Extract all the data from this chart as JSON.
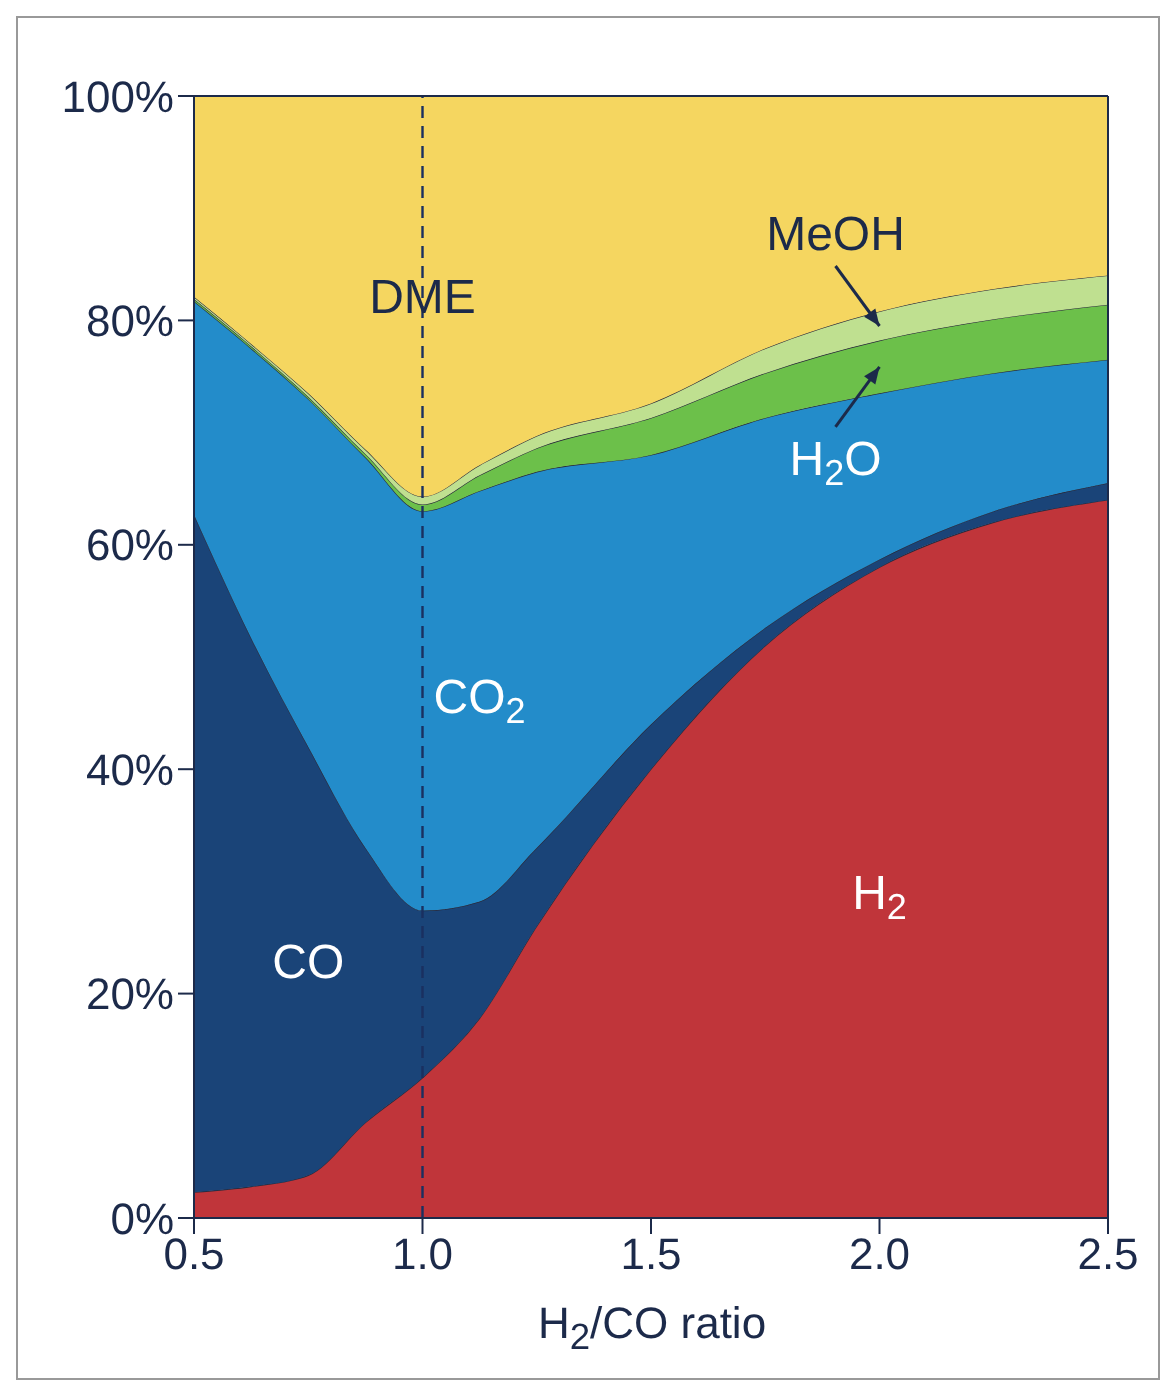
{
  "chart_data": {
    "type": "area",
    "stacked": true,
    "xlabel": "H$_{2}$/CO ratio",
    "x": [
      0.5,
      0.625,
      0.75,
      0.875,
      1.0,
      1.125,
      1.25,
      1.5,
      1.75,
      2.0,
      2.25,
      2.5
    ],
    "series": [
      {
        "name": "H$_{2}$",
        "color": "#c0353a",
        "values": [
          2.3,
          2.8,
          3.8,
          8.5,
          12.5,
          17.8,
          26,
          40,
          51,
          58,
          62,
          64
        ]
      },
      {
        "name": "CO",
        "color": "#1a4478",
        "values": [
          60.4,
          48.9,
          38.2,
          24.5,
          14.9,
          10.4,
          7,
          4,
          1.6,
          0.7,
          1,
          1.5
        ]
      },
      {
        "name": "CO$_{2}$",
        "color": "#238cca",
        "values": [
          19,
          25.8,
          31,
          34.8,
          35.6,
          36.6,
          33.5,
          24,
          18.7,
          14.8,
          12.3,
          11
        ]
      },
      {
        "name": "H$_{2}$O",
        "color": "#6cc04a",
        "values": [
          0.2,
          0.2,
          0.2,
          0.3,
          0.6,
          1.4,
          2.1,
          3.3,
          4,
          4.7,
          4.8,
          4.9
        ]
      },
      {
        "name": "MeOH",
        "color": "#bfe090",
        "values": [
          0.2,
          0.2,
          0.3,
          0.4,
          0.7,
          0.9,
          1.1,
          1.3,
          2.2,
          2.6,
          2.7,
          2.6
        ]
      },
      {
        "name": "DME",
        "color": "#f5d660",
        "values": [
          17.9,
          22.1,
          26.5,
          31.5,
          35.7,
          32.9,
          30.3,
          27.4,
          22.5,
          19.2,
          17.2,
          16
        ]
      }
    ],
    "xlim": [
      0.5,
      2.5
    ],
    "xticks": [
      {
        "value": 0.5,
        "label": "0.5"
      },
      {
        "value": 1,
        "label": "1.0"
      },
      {
        "value": 1.5,
        "label": "1.5"
      },
      {
        "value": 2,
        "label": "2.0"
      },
      {
        "value": 2.5,
        "label": "2.5"
      }
    ],
    "ylim": [
      0,
      100
    ],
    "yticks": [
      {
        "value": 0,
        "label": "0%"
      },
      {
        "value": 20,
        "label": "20%"
      },
      {
        "value": 40,
        "label": "40%"
      },
      {
        "value": 60,
        "label": "60%"
      },
      {
        "value": 80,
        "label": "80%"
      },
      {
        "value": 100,
        "label": "100%"
      }
    ],
    "ref_lines": [
      {
        "axis": "x",
        "value": 1,
        "label": null,
        "color": "#1a3060",
        "line_style": "dashed"
      }
    ]
  }
}
